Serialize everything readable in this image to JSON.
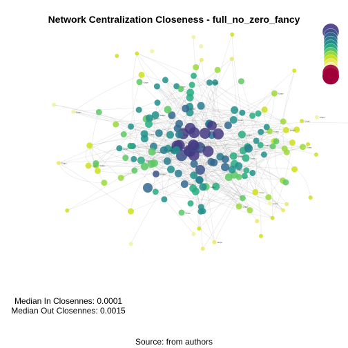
{
  "title": "Network Centralization Closeness - full_no_zero_fancy",
  "stats": {
    "median_in": "Median In Closennes: 0.0001",
    "median_out": "Median Out Closennes: 0.0015"
  },
  "source": "Source: from authors",
  "chart_data": {
    "type": "network",
    "title": "Network Centralization Closeness - full_no_zero_fancy",
    "metric": "closeness centralization",
    "median_in_closeness": 0.0001,
    "median_out_closeness": 0.0015,
    "legend": {
      "placement": "top-right",
      "scale": "viridis-to-red",
      "levels": 12
    },
    "palette": [
      "#443983",
      "#3b528b",
      "#31688e",
      "#287c8e",
      "#21908c",
      "#27ad81",
      "#5cc863",
      "#9bd93c",
      "#cfe11c",
      "#ece765",
      "#eef39c",
      "#a0003a"
    ],
    "node_labels": [
      "Grupo",
      "Grupo",
      "Grupo",
      "Grupo",
      "Grupo",
      "Grupo"
    ]
  }
}
